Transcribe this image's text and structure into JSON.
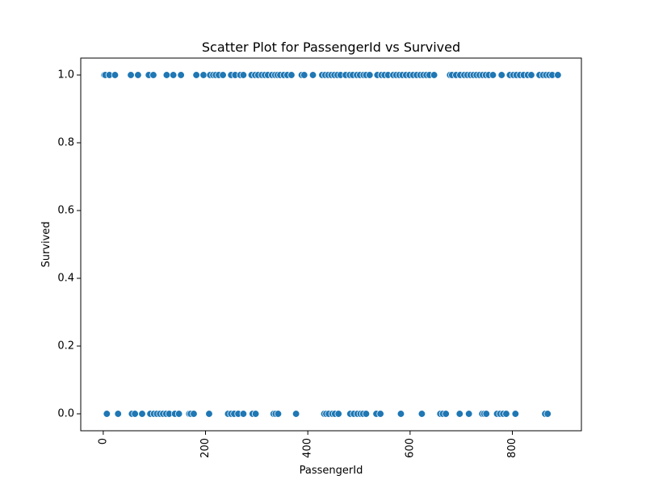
{
  "chart_data": {
    "type": "scatter",
    "title": "Scatter Plot for PassengerId vs Survived",
    "xlabel": "PassengerId",
    "ylabel": "Survived",
    "xlim": [
      -44,
      935
    ],
    "ylim": [
      -0.05,
      1.05
    ],
    "x_ticks": [
      0,
      200,
      400,
      600,
      800
    ],
    "x_tick_labels": [
      "0",
      "200",
      "400",
      "600",
      "800"
    ],
    "y_ticks": [
      0.0,
      0.2,
      0.4,
      0.6,
      0.8,
      1.0
    ],
    "y_tick_labels": [
      "0.0",
      "0.2",
      "0.4",
      "0.6",
      "0.8",
      "1.0"
    ],
    "grid": false,
    "legend": "none",
    "marker_color": "#1f77b4",
    "points": [
      {
        "x": 2,
        "y": 1
      },
      {
        "x": 4,
        "y": 1
      },
      {
        "x": 12,
        "y": 1
      },
      {
        "x": 23,
        "y": 1
      },
      {
        "x": 54,
        "y": 1
      },
      {
        "x": 68,
        "y": 1
      },
      {
        "x": 89,
        "y": 1
      },
      {
        "x": 98,
        "y": 1
      },
      {
        "x": 124,
        "y": 1
      },
      {
        "x": 137,
        "y": 1
      },
      {
        "x": 152,
        "y": 1
      },
      {
        "x": 182,
        "y": 1
      },
      {
        "x": 196,
        "y": 1
      },
      {
        "x": 209,
        "y": 1
      },
      {
        "x": 215,
        "y": 1
      },
      {
        "x": 220,
        "y": 1
      },
      {
        "x": 226,
        "y": 1
      },
      {
        "x": 234,
        "y": 1
      },
      {
        "x": 250,
        "y": 1
      },
      {
        "x": 258,
        "y": 1
      },
      {
        "x": 268,
        "y": 1
      },
      {
        "x": 274,
        "y": 1
      },
      {
        "x": 290,
        "y": 1
      },
      {
        "x": 297,
        "y": 1
      },
      {
        "x": 303,
        "y": 1
      },
      {
        "x": 310,
        "y": 1
      },
      {
        "x": 316,
        "y": 1
      },
      {
        "x": 322,
        "y": 1
      },
      {
        "x": 330,
        "y": 1
      },
      {
        "x": 336,
        "y": 1
      },
      {
        "x": 341,
        "y": 1
      },
      {
        "x": 346,
        "y": 1
      },
      {
        "x": 353,
        "y": 1
      },
      {
        "x": 360,
        "y": 1
      },
      {
        "x": 368,
        "y": 1
      },
      {
        "x": 388,
        "y": 1
      },
      {
        "x": 393,
        "y": 1
      },
      {
        "x": 410,
        "y": 1
      },
      {
        "x": 428,
        "y": 1
      },
      {
        "x": 434,
        "y": 1
      },
      {
        "x": 440,
        "y": 1
      },
      {
        "x": 446,
        "y": 1
      },
      {
        "x": 452,
        "y": 1
      },
      {
        "x": 458,
        "y": 1
      },
      {
        "x": 464,
        "y": 1
      },
      {
        "x": 474,
        "y": 1
      },
      {
        "x": 482,
        "y": 1
      },
      {
        "x": 488,
        "y": 1
      },
      {
        "x": 496,
        "y": 1
      },
      {
        "x": 502,
        "y": 1
      },
      {
        "x": 509,
        "y": 1
      },
      {
        "x": 514,
        "y": 1
      },
      {
        "x": 521,
        "y": 1
      },
      {
        "x": 536,
        "y": 1
      },
      {
        "x": 544,
        "y": 1
      },
      {
        "x": 550,
        "y": 1
      },
      {
        "x": 557,
        "y": 1
      },
      {
        "x": 567,
        "y": 1
      },
      {
        "x": 573,
        "y": 1
      },
      {
        "x": 579,
        "y": 1
      },
      {
        "x": 585,
        "y": 1
      },
      {
        "x": 592,
        "y": 1
      },
      {
        "x": 599,
        "y": 1
      },
      {
        "x": 606,
        "y": 1
      },
      {
        "x": 613,
        "y": 1
      },
      {
        "x": 620,
        "y": 1
      },
      {
        "x": 626,
        "y": 1
      },
      {
        "x": 632,
        "y": 1
      },
      {
        "x": 638,
        "y": 1
      },
      {
        "x": 647,
        "y": 1
      },
      {
        "x": 678,
        "y": 1
      },
      {
        "x": 682,
        "y": 1
      },
      {
        "x": 690,
        "y": 1
      },
      {
        "x": 698,
        "y": 1
      },
      {
        "x": 706,
        "y": 1
      },
      {
        "x": 712,
        "y": 1
      },
      {
        "x": 718,
        "y": 1
      },
      {
        "x": 724,
        "y": 1
      },
      {
        "x": 730,
        "y": 1
      },
      {
        "x": 736,
        "y": 1
      },
      {
        "x": 742,
        "y": 1
      },
      {
        "x": 748,
        "y": 1
      },
      {
        "x": 754,
        "y": 1
      },
      {
        "x": 762,
        "y": 1
      },
      {
        "x": 779,
        "y": 1
      },
      {
        "x": 795,
        "y": 1
      },
      {
        "x": 802,
        "y": 1
      },
      {
        "x": 808,
        "y": 1
      },
      {
        "x": 815,
        "y": 1
      },
      {
        "x": 822,
        "y": 1
      },
      {
        "x": 830,
        "y": 1
      },
      {
        "x": 837,
        "y": 1
      },
      {
        "x": 853,
        "y": 1
      },
      {
        "x": 860,
        "y": 1
      },
      {
        "x": 866,
        "y": 1
      },
      {
        "x": 872,
        "y": 1
      },
      {
        "x": 878,
        "y": 1
      },
      {
        "x": 889,
        "y": 1
      },
      {
        "x": 7,
        "y": 0
      },
      {
        "x": 29,
        "y": 0
      },
      {
        "x": 56,
        "y": 0
      },
      {
        "x": 62,
        "y": 0
      },
      {
        "x": 76,
        "y": 0
      },
      {
        "x": 92,
        "y": 0
      },
      {
        "x": 99,
        "y": 0
      },
      {
        "x": 105,
        "y": 0
      },
      {
        "x": 111,
        "y": 0
      },
      {
        "x": 117,
        "y": 0
      },
      {
        "x": 123,
        "y": 0
      },
      {
        "x": 129,
        "y": 0
      },
      {
        "x": 140,
        "y": 0
      },
      {
        "x": 148,
        "y": 0
      },
      {
        "x": 168,
        "y": 0
      },
      {
        "x": 171,
        "y": 0
      },
      {
        "x": 177,
        "y": 0
      },
      {
        "x": 207,
        "y": 0
      },
      {
        "x": 244,
        "y": 0
      },
      {
        "x": 250,
        "y": 0
      },
      {
        "x": 256,
        "y": 0
      },
      {
        "x": 264,
        "y": 0
      },
      {
        "x": 274,
        "y": 0
      },
      {
        "x": 292,
        "y": 0
      },
      {
        "x": 298,
        "y": 0
      },
      {
        "x": 333,
        "y": 0
      },
      {
        "x": 337,
        "y": 0
      },
      {
        "x": 342,
        "y": 0
      },
      {
        "x": 377,
        "y": 0
      },
      {
        "x": 432,
        "y": 0
      },
      {
        "x": 436,
        "y": 0
      },
      {
        "x": 441,
        "y": 0
      },
      {
        "x": 448,
        "y": 0
      },
      {
        "x": 453,
        "y": 0
      },
      {
        "x": 460,
        "y": 0
      },
      {
        "x": 483,
        "y": 0
      },
      {
        "x": 490,
        "y": 0
      },
      {
        "x": 497,
        "y": 0
      },
      {
        "x": 503,
        "y": 0
      },
      {
        "x": 508,
        "y": 0
      },
      {
        "x": 514,
        "y": 0
      },
      {
        "x": 534,
        "y": 0
      },
      {
        "x": 542,
        "y": 0
      },
      {
        "x": 582,
        "y": 0
      },
      {
        "x": 623,
        "y": 0
      },
      {
        "x": 659,
        "y": 0
      },
      {
        "x": 664,
        "y": 0
      },
      {
        "x": 670,
        "y": 0
      },
      {
        "x": 697,
        "y": 0
      },
      {
        "x": 715,
        "y": 0
      },
      {
        "x": 741,
        "y": 0
      },
      {
        "x": 745,
        "y": 0
      },
      {
        "x": 749,
        "y": 0
      },
      {
        "x": 770,
        "y": 0
      },
      {
        "x": 776,
        "y": 0
      },
      {
        "x": 782,
        "y": 0
      },
      {
        "x": 788,
        "y": 0
      },
      {
        "x": 806,
        "y": 0
      },
      {
        "x": 864,
        "y": 0
      },
      {
        "x": 869,
        "y": 0
      }
    ]
  }
}
